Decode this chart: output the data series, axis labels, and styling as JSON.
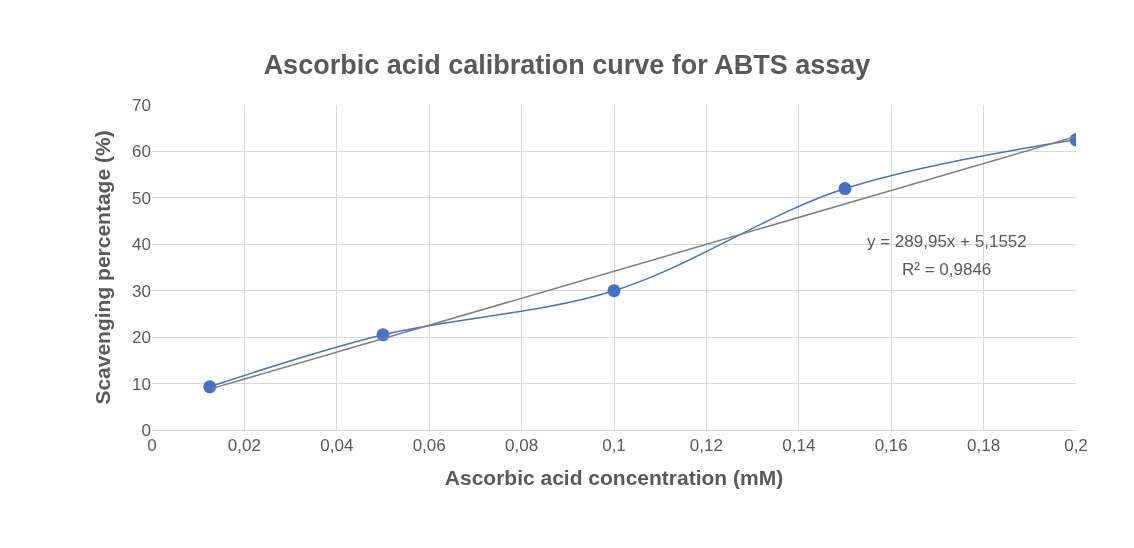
{
  "chart_data": {
    "type": "line",
    "title": "Ascorbic acid calibration curve for ABTS assay",
    "xlabel": "Ascorbic acid concentration (mM)",
    "ylabel": "Scavenging percentage (%)",
    "series": [
      {
        "x": [
          0.0125,
          0.05,
          0.1,
          0.15,
          0.2
        ],
        "values": [
          9.3,
          20.5,
          30,
          52,
          62.5
        ],
        "color": "#4472c4",
        "marker": "circle"
      },
      {
        "x": [
          0.0125,
          0.2
        ],
        "values": [
          8.8,
          63.2
        ],
        "color": "#7f7f7f",
        "marker": "none"
      }
    ],
    "xlim": [
      0,
      0.2
    ],
    "xticks": [
      0,
      {
        "value": 0.02,
        "label": "0,02"
      },
      {
        "value": 0.04,
        "label": "0,04"
      },
      {
        "value": 0.06,
        "label": "0,06"
      },
      {
        "value": 0.08,
        "label": "0,08"
      },
      {
        "value": 0.1,
        "label": "0,1"
      },
      {
        "value": 0.12,
        "label": "0,12"
      },
      {
        "value": 0.14,
        "label": "0,14"
      },
      {
        "value": 0.16,
        "label": "0,16"
      },
      {
        "value": 0.18,
        "label": "0,18"
      },
      {
        "value": 0.2,
        "label": "0,2"
      }
    ],
    "ylim": [
      0,
      70
    ],
    "yticks": [
      0,
      10,
      20,
      30,
      40,
      50,
      60,
      70
    ],
    "annotations": [
      "y = 289,95x + 5,1552",
      "R² = 0,9846"
    ],
    "grid": true
  }
}
